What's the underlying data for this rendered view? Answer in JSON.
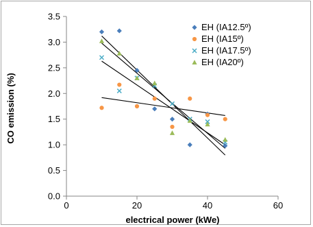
{
  "chart_data": {
    "type": "scatter",
    "xlabel": "electrical power (kWe)",
    "ylabel": "CO emission (%)",
    "xlim": [
      0,
      60
    ],
    "ylim": [
      0,
      3.5
    ],
    "xticks": [
      "0",
      "20",
      "40",
      "60"
    ],
    "yticks": [
      "0.0",
      "0.5",
      "1.0",
      "1.5",
      "2.0",
      "2.5",
      "3.0",
      "3.5"
    ],
    "xtick_values": [
      0,
      20,
      40,
      60
    ],
    "ytick_values": [
      0,
      0.5,
      1.0,
      1.5,
      2.0,
      2.5,
      3.0,
      3.5
    ],
    "grid": false,
    "legend_position": "top-right",
    "trendlines": true,
    "series": [
      {
        "name": "EH (IA12.5º)",
        "color": "#4a7ebb",
        "marker": "diamond",
        "points": [
          [
            10,
            3.2
          ],
          [
            15,
            3.22
          ],
          [
            20,
            2.45
          ],
          [
            25,
            1.7
          ],
          [
            30,
            1.5
          ],
          [
            35,
            1.0
          ],
          [
            40,
            1.6
          ],
          [
            45,
            0.98
          ]
        ],
        "trend": [
          [
            10,
            3.12
          ],
          [
            45,
            0.8
          ]
        ]
      },
      {
        "name": "EH (IA15º)",
        "color": "#f79646",
        "marker": "circle",
        "points": [
          [
            10,
            1.72
          ],
          [
            15,
            2.17
          ],
          [
            20,
            1.75
          ],
          [
            25,
            1.9
          ],
          [
            30,
            1.35
          ],
          [
            35,
            1.9
          ],
          [
            40,
            1.58
          ],
          [
            45,
            1.5
          ]
        ],
        "trend": [
          [
            10,
            1.92
          ],
          [
            45,
            1.57
          ]
        ]
      },
      {
        "name": "EH (IA17.5º)",
        "color": "#4bacc6",
        "marker": "x",
        "points": [
          [
            10,
            2.7
          ],
          [
            15,
            2.05
          ],
          [
            20,
            2.3
          ],
          [
            25,
            2.15
          ],
          [
            30,
            1.8
          ],
          [
            35,
            1.5
          ],
          [
            40,
            1.45
          ],
          [
            45,
            1.05
          ]
        ],
        "trend": [
          [
            10,
            2.63
          ],
          [
            45,
            1.0
          ]
        ]
      },
      {
        "name": "EH (IA20º)",
        "color": "#9bbb59",
        "marker": "triangle",
        "points": [
          [
            10,
            3.02
          ],
          [
            15,
            2.78
          ],
          [
            20,
            2.3
          ],
          [
            25,
            2.2
          ],
          [
            30,
            1.23
          ],
          [
            35,
            1.47
          ],
          [
            40,
            1.4
          ],
          [
            45,
            1.1
          ]
        ],
        "trend": [
          [
            10,
            2.98
          ],
          [
            45,
            0.93
          ]
        ]
      }
    ]
  }
}
